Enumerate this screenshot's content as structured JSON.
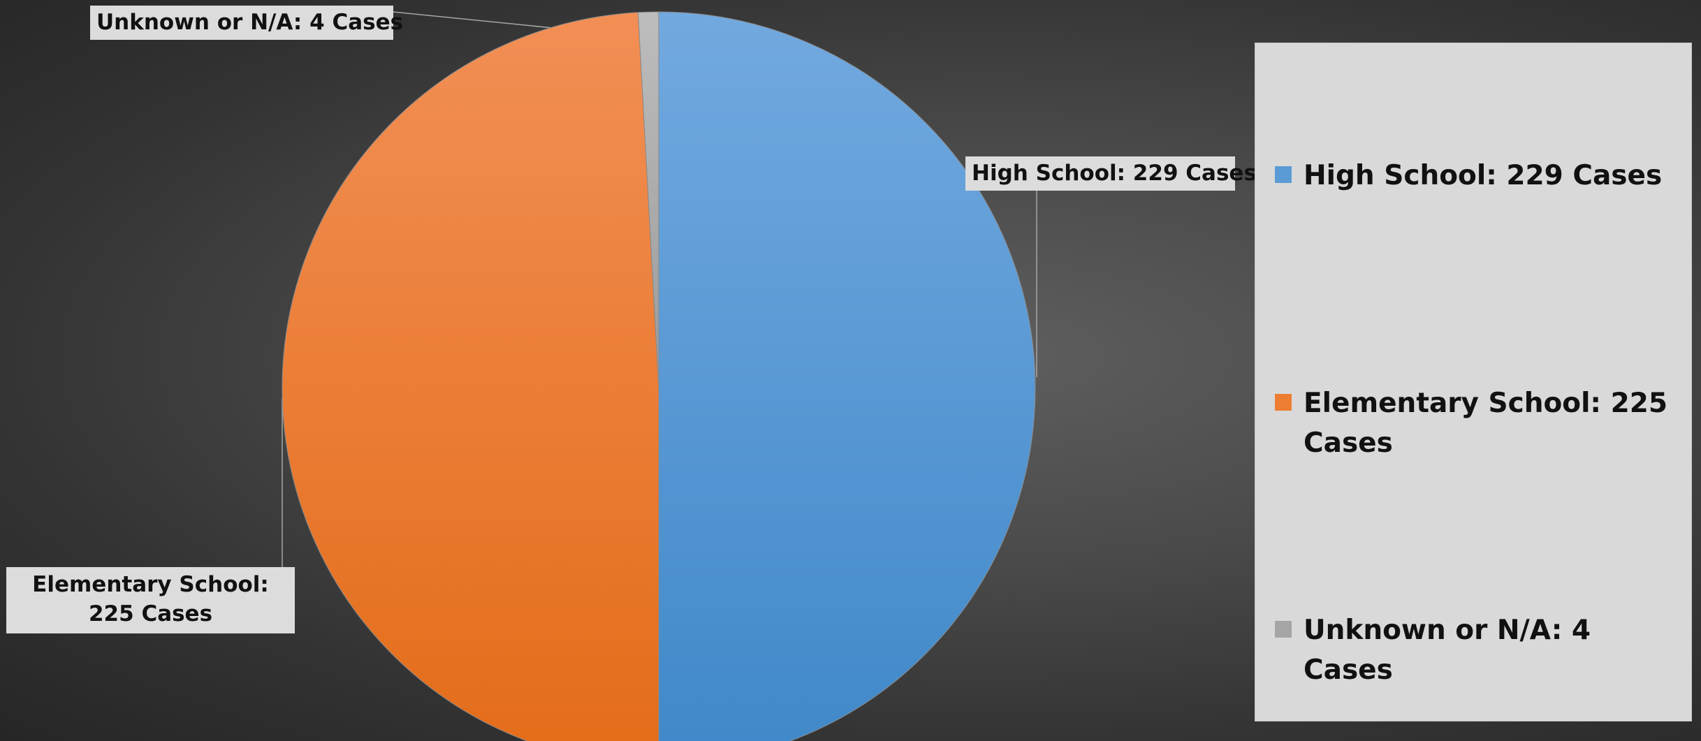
{
  "chart_data": {
    "type": "pie",
    "title": "",
    "series": [
      {
        "categories": [
          "High School",
          "Elementary  School",
          "Unknown or N/A"
        ],
        "values": [
          229,
          225,
          4
        ]
      }
    ],
    "slices": [
      {
        "category": "High School",
        "value": 229,
        "color": "#5b9bd5",
        "label": "High School: 229 Cases"
      },
      {
        "category": "Elementary  School",
        "value": 225,
        "color": "#ed7d31",
        "label": "Elementary  School: 225 Cases"
      },
      {
        "category": "Unknown or N/A",
        "value": 4,
        "color": "#a5a5a5",
        "label": "Unknown or N/A: 4 Cases"
      }
    ],
    "legend": {
      "position": "right",
      "entries": [
        "High School: 229 Cases",
        "Elementary  School: 225 Cases",
        "Unknown or N/A: 4 Cases"
      ]
    }
  }
}
